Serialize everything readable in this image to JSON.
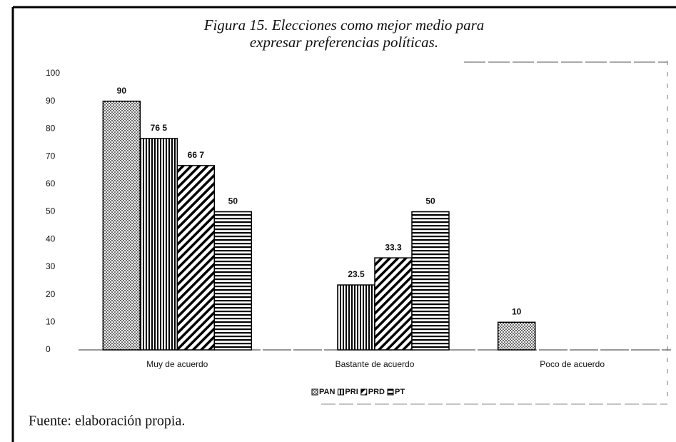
{
  "chart_data": {
    "type": "bar",
    "title": [
      "Figura 15. Elecciones como mejor medio para",
      "expresar preferencias políticas."
    ],
    "categories": [
      "Muy de acuerdo",
      "Bastante de acuerdo",
      "Poco de acuerdo"
    ],
    "series": [
      {
        "name": "PAN",
        "color": "#000000",
        "pattern": "dots",
        "values": [
          90,
          null,
          10
        ],
        "value_labels": [
          "90",
          null,
          "10"
        ]
      },
      {
        "name": "PRI",
        "color": "#000000",
        "pattern": "vertical",
        "values": [
          76.5,
          23.5,
          null
        ],
        "value_labels": [
          "76 5",
          "23.5",
          null
        ]
      },
      {
        "name": "PRD",
        "color": "#000000",
        "pattern": "diagonal",
        "values": [
          66.7,
          33.3,
          null
        ],
        "value_labels": [
          "66 7",
          "33.3",
          null
        ]
      },
      {
        "name": "PT",
        "color": "#000000",
        "pattern": "horizontal",
        "values": [
          50,
          50,
          null
        ],
        "value_labels": [
          "50",
          "50",
          null
        ]
      }
    ],
    "ylim": [
      0,
      100
    ],
    "yticks": [
      0,
      10,
      20,
      30,
      40,
      50,
      60,
      70,
      80,
      90,
      100
    ],
    "grid": false,
    "legend": "bottom",
    "source": "Fuente: elaboración propia."
  }
}
